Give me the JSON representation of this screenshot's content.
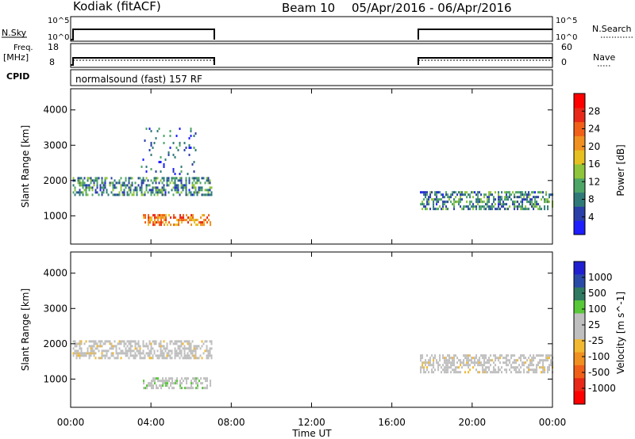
{
  "header": {
    "station": "Kodiak (fitACF)",
    "beam": "Beam 10",
    "date_range": "05/Apr/2016 - 06/Apr/2016"
  },
  "strips": {
    "nsky": {
      "label": "N.Sky",
      "ticks": [
        "10^5",
        "10^0"
      ]
    },
    "nsearch": {
      "label": "N.Search",
      "ticks": [
        "10^5",
        "10^0"
      ]
    },
    "freq": {
      "label_line1": "Freq.",
      "label_line2": "[MHz]",
      "ticks": [
        "18",
        "8"
      ]
    },
    "nave": {
      "label": "Nave",
      "ticks": [
        "60",
        "0"
      ]
    },
    "cpid": {
      "label": "CPID",
      "value": "normalsound (fast) 157 RF"
    }
  },
  "colors": {
    "power_scale": [
      "#1e1eff",
      "#2a3fa8",
      "#2f7a78",
      "#4da566",
      "#8fc53a",
      "#e6c020",
      "#f09020",
      "#f06018",
      "#e82818",
      "#ff0000"
    ],
    "velocity_scale": [
      "#ff0000",
      "#e82818",
      "#f06018",
      "#f09020",
      "#f2b830",
      "#bfbfbf",
      "#bfbfbf",
      "#58c838",
      "#2f7a60",
      "#2a4aa8",
      "#2020d0"
    ],
    "axis": "#000000"
  },
  "chart_data": [
    {
      "type": "heatmap",
      "panel": "power",
      "title": "",
      "xlabel": "Time UT",
      "ylabel": "Slant Range [km]",
      "ylim": [
        200,
        4600
      ],
      "xlim_hours": [
        0,
        24
      ],
      "x_ticks": [
        "00:00",
        "04:00",
        "08:00",
        "12:00",
        "16:00",
        "20:00",
        "00:00"
      ],
      "y_ticks": [
        1000,
        2000,
        3000,
        4000
      ],
      "colorbar": {
        "label": "Power [dB]",
        "ticks": [
          4,
          8,
          12,
          16,
          20,
          24,
          28
        ],
        "range": [
          0,
          32
        ]
      },
      "data_gaps_hours": [
        [
          7.0,
          17.4
        ]
      ],
      "echo_regions": [
        {
          "name": "main-band-early",
          "t_start_h": 0.1,
          "t_end_h": 7.0,
          "range_km": [
            1600,
            2100
          ],
          "value": 9
        },
        {
          "name": "strong-low-band",
          "t_start_h": 3.6,
          "t_end_h": 7.0,
          "range_km": [
            750,
            1050
          ],
          "value": 22
        },
        {
          "name": "main-band-late",
          "t_start_h": 17.4,
          "t_end_h": 24.0,
          "range_km": [
            1200,
            1700
          ],
          "value": 9
        },
        {
          "name": "far-range",
          "t_start_h": 3.5,
          "t_end_h": 6.2,
          "range_km": [
            2200,
            3500
          ],
          "value": 6
        }
      ]
    },
    {
      "type": "heatmap",
      "panel": "velocity",
      "title": "",
      "xlabel": "Time UT",
      "ylabel": "Slant Range [km]",
      "ylim": [
        200,
        4600
      ],
      "xlim_hours": [
        0,
        24
      ],
      "x_ticks": [
        "00:00",
        "04:00",
        "08:00",
        "12:00",
        "16:00",
        "20:00",
        "00:00"
      ],
      "y_ticks": [
        1000,
        2000,
        3000,
        4000
      ],
      "colorbar": {
        "label": "Velocity [m s^-1]",
        "ticks": [
          "1000",
          "500",
          "100",
          "25",
          "-25",
          "-100",
          "-500",
          "-1000"
        ]
      },
      "data_gaps_hours": [
        [
          7.0,
          17.4
        ]
      ],
      "echo_regions": [
        {
          "name": "ground-scatter-early",
          "t_start_h": 0.1,
          "t_end_h": 7.0,
          "range_km": [
            1600,
            2100
          ],
          "value": 0
        },
        {
          "name": "low-band-velocity",
          "t_start_h": 3.6,
          "t_end_h": 7.0,
          "range_km": [
            750,
            1050
          ],
          "value": 80
        },
        {
          "name": "ground-scatter-late",
          "t_start_h": 17.4,
          "t_end_h": 24.0,
          "range_km": [
            1200,
            1700
          ],
          "value": 0
        }
      ]
    }
  ]
}
